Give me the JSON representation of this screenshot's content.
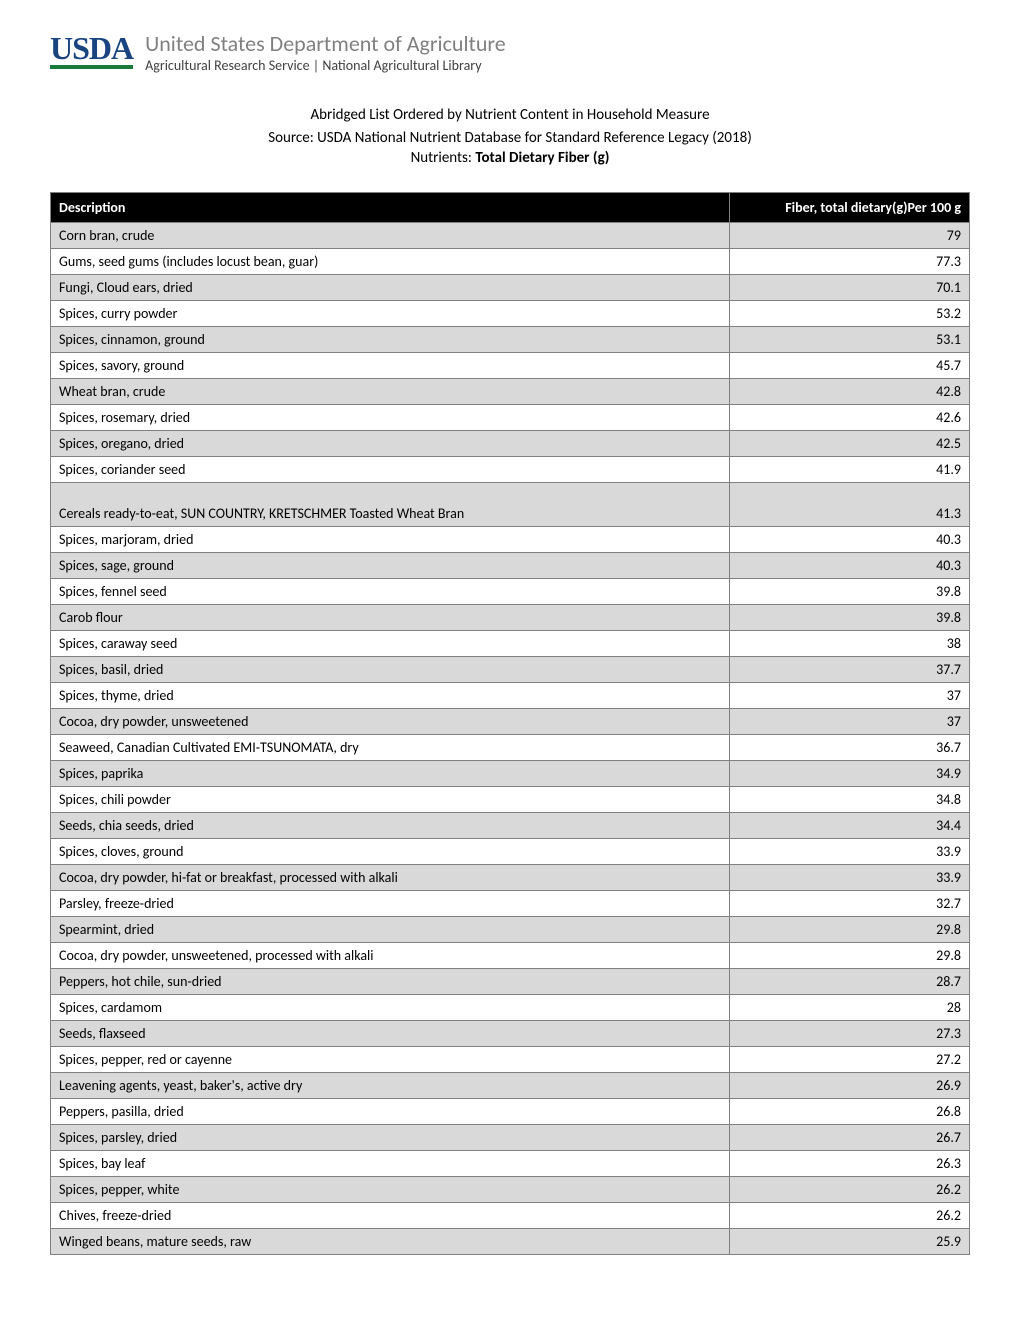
{
  "logo": {
    "text": "USDA",
    "text_color": "#1a4480",
    "underline_color": "#1a7a3a"
  },
  "header": {
    "department": "United States Department of Agriculture",
    "service": "Agricultural Research Service  |  National Agricultural Library"
  },
  "title": {
    "line1": "Abridged List Ordered by Nutrient Content in Household Measure",
    "line2": "Source: USDA National Nutrient Database for Standard Reference Legacy (2018)",
    "line3_prefix": "Nutrients: ",
    "line3_bold": "Total Dietary Fiber (g)"
  },
  "table": {
    "columns": [
      "Description",
      "Fiber, total dietary(g)Per 100 g"
    ],
    "header_bg": "#000000",
    "header_fg": "#ffffff",
    "alt_row_bg": "#d9d9d9",
    "border_color": "#808080",
    "rows": [
      {
        "desc": "Corn bran, crude",
        "val": "79",
        "alt": true
      },
      {
        "desc": "Gums, seed gums (includes locust bean, guar)",
        "val": "77.3",
        "alt": false
      },
      {
        "desc": "Fungi, Cloud ears, dried",
        "val": "70.1",
        "alt": true
      },
      {
        "desc": "Spices, curry powder",
        "val": "53.2",
        "alt": false
      },
      {
        "desc": "Spices, cinnamon, ground",
        "val": "53.1",
        "alt": true
      },
      {
        "desc": "Spices, savory, ground",
        "val": "45.7",
        "alt": false
      },
      {
        "desc": "Wheat bran, crude",
        "val": "42.8",
        "alt": true
      },
      {
        "desc": "Spices, rosemary, dried",
        "val": "42.6",
        "alt": false
      },
      {
        "desc": "Spices, oregano, dried",
        "val": "42.5",
        "alt": true
      },
      {
        "desc": "Spices, coriander seed",
        "val": "41.9",
        "alt": false
      },
      {
        "desc": "Cereals ready-to-eat, SUN COUNTRY, KRETSCHMER Toasted Wheat Bran",
        "val": "41.3",
        "alt": true,
        "tall": true
      },
      {
        "desc": "Spices, marjoram, dried",
        "val": "40.3",
        "alt": false
      },
      {
        "desc": "Spices, sage, ground",
        "val": "40.3",
        "alt": true
      },
      {
        "desc": "Spices, fennel seed",
        "val": "39.8",
        "alt": false
      },
      {
        "desc": "Carob flour",
        "val": "39.8",
        "alt": true
      },
      {
        "desc": "Spices, caraway seed",
        "val": "38",
        "alt": false
      },
      {
        "desc": "Spices, basil, dried",
        "val": "37.7",
        "alt": true
      },
      {
        "desc": "Spices, thyme, dried",
        "val": "37",
        "alt": false
      },
      {
        "desc": "Cocoa, dry powder, unsweetened",
        "val": "37",
        "alt": true
      },
      {
        "desc": "Seaweed, Canadian Cultivated EMI-TSUNOMATA, dry",
        "val": "36.7",
        "alt": false
      },
      {
        "desc": "Spices, paprika",
        "val": "34.9",
        "alt": true
      },
      {
        "desc": "Spices, chili powder",
        "val": "34.8",
        "alt": false
      },
      {
        "desc": "Seeds, chia seeds, dried",
        "val": "34.4",
        "alt": true
      },
      {
        "desc": "Spices, cloves, ground",
        "val": "33.9",
        "alt": false
      },
      {
        "desc": "Cocoa, dry powder, hi-fat or breakfast, processed with alkali",
        "val": "33.9",
        "alt": true
      },
      {
        "desc": "Parsley, freeze-dried",
        "val": "32.7",
        "alt": false
      },
      {
        "desc": "Spearmint, dried",
        "val": "29.8",
        "alt": true
      },
      {
        "desc": "Cocoa, dry powder, unsweetened, processed with alkali",
        "val": "29.8",
        "alt": false
      },
      {
        "desc": "Peppers, hot chile, sun-dried",
        "val": "28.7",
        "alt": true
      },
      {
        "desc": "Spices, cardamom",
        "val": "28",
        "alt": false
      },
      {
        "desc": "Seeds, flaxseed",
        "val": "27.3",
        "alt": true
      },
      {
        "desc": "Spices, pepper, red or cayenne",
        "val": "27.2",
        "alt": false
      },
      {
        "desc": "Leavening agents, yeast, baker's, active dry",
        "val": "26.9",
        "alt": true
      },
      {
        "desc": "Peppers, pasilla, dried",
        "val": "26.8",
        "alt": false
      },
      {
        "desc": "Spices, parsley, dried",
        "val": "26.7",
        "alt": true
      },
      {
        "desc": "Spices, bay leaf",
        "val": "26.3",
        "alt": false
      },
      {
        "desc": "Spices, pepper, white",
        "val": "26.2",
        "alt": true
      },
      {
        "desc": "Chives, freeze-dried",
        "val": "26.2",
        "alt": false
      },
      {
        "desc": "Winged beans, mature seeds, raw",
        "val": "25.9",
        "alt": true
      }
    ]
  }
}
